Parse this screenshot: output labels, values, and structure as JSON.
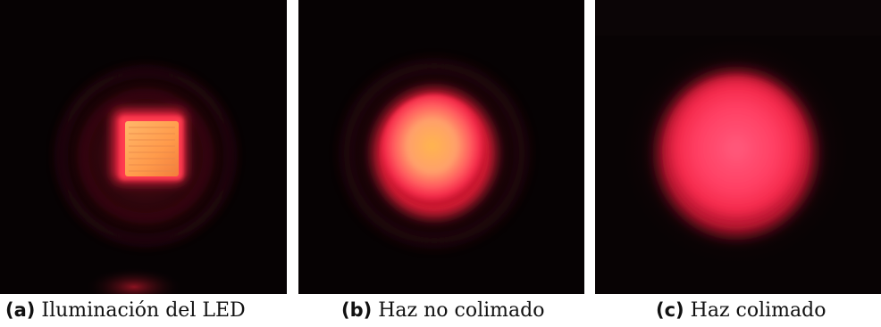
{
  "figure": {
    "panels": [
      {
        "tag": "(a)",
        "caption": "Iluminación del LED"
      },
      {
        "tag": "(b)",
        "caption": "Haz no colimado"
      },
      {
        "tag": "(c)",
        "caption": "Haz colimado"
      }
    ],
    "colors": {
      "background": "#060203",
      "red_glow": "#e01a34",
      "orange_core": "#ffb054",
      "pink_spot": "#ff3a57"
    }
  }
}
